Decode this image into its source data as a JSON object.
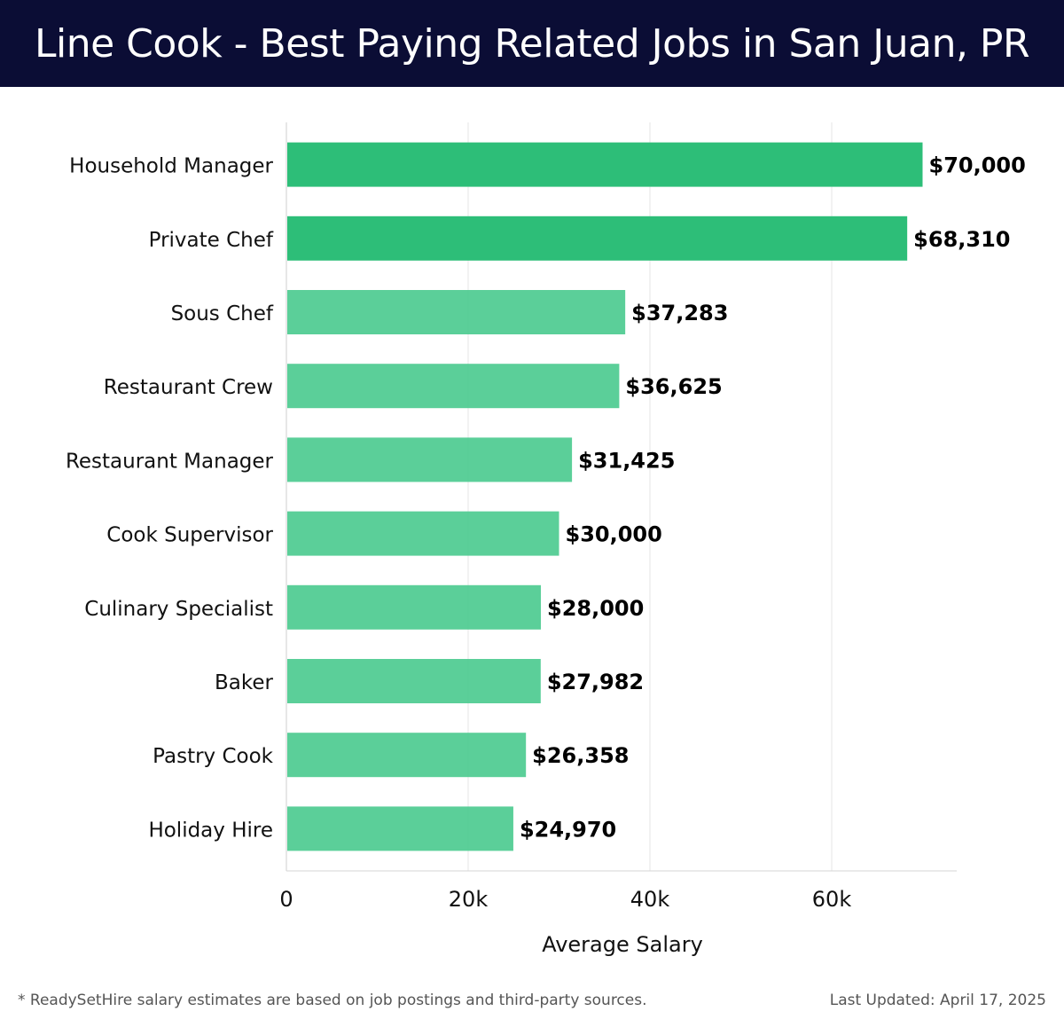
{
  "header": {
    "title": "Line Cook - Best Paying Related Jobs in San Juan, PR"
  },
  "chart_data": {
    "type": "bar",
    "orientation": "horizontal",
    "categories": [
      "Household Manager",
      "Private Chef",
      "Sous Chef",
      "Restaurant Crew",
      "Restaurant Manager",
      "Cook Supervisor",
      "Culinary Specialist",
      "Baker",
      "Pastry Cook",
      "Holiday Hire"
    ],
    "values": [
      70000,
      68310,
      37283,
      36625,
      31425,
      30000,
      28000,
      27982,
      26358,
      24970
    ],
    "value_labels": [
      "$70,000",
      "$68,310",
      "$37,283",
      "$36,625",
      "$31,425",
      "$30,000",
      "$28,000",
      "$27,982",
      "$26,358",
      "$24,970"
    ],
    "xlabel": "Average Salary",
    "ylabel": "",
    "xlim": [
      0,
      73600
    ],
    "xticks": [
      0,
      20000,
      40000,
      60000
    ],
    "xtick_labels": [
      "0",
      "20k",
      "40k",
      "60k"
    ],
    "grid": true,
    "colors": {
      "highlight": "#2dbe78",
      "default": "#52cc93"
    },
    "highlighted_count": 2
  },
  "footer": {
    "note": "* ReadySetHire salary estimates are based on job postings and third-party sources.",
    "updated": "Last Updated: April 17, 2025"
  }
}
